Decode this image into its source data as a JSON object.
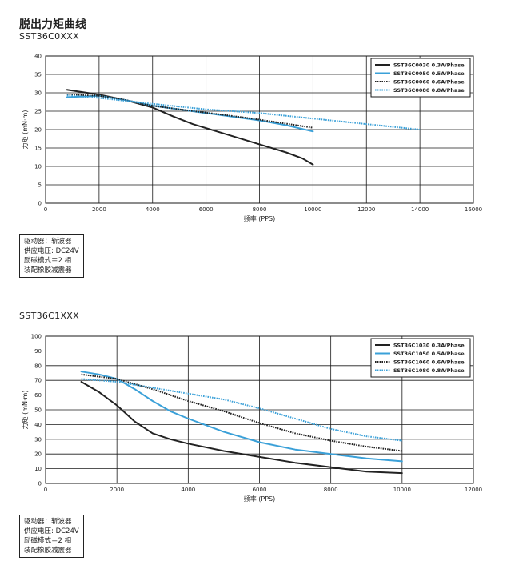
{
  "page": {
    "title": "脱出力矩曲线"
  },
  "colors": {
    "black": "#222222",
    "blue": "#3aa0d8",
    "grid": "#1a1a1a"
  },
  "sections": [
    {
      "model": "SST36C0XXX",
      "notes": [
        "驱动器：斩波器",
        "供应电压: DC24V",
        "励磁模式＝2 相",
        "装配橡胶减震器"
      ]
    },
    {
      "model": "SST36C1XXX",
      "notes": [
        "驱动器：斩波器",
        "供应电压: DC24V",
        "励磁模式＝2 相",
        "装配橡胶减震器"
      ]
    }
  ],
  "chart_data": [
    {
      "type": "line",
      "xlabel": "频率 (PPS)",
      "ylabel": "力矩 (mN·m)",
      "xlim": [
        0,
        16000
      ],
      "ylim": [
        0,
        40
      ],
      "xticks": [
        0,
        2000,
        4000,
        6000,
        8000,
        10000,
        12000,
        14000,
        16000
      ],
      "yticks": [
        0,
        5,
        10,
        15,
        20,
        25,
        30,
        35,
        40
      ],
      "grid": true,
      "legend_position": "top-right",
      "series": [
        {
          "name": "SST36C0030  0.3A/Phase",
          "color": "#222222",
          "style": "solid",
          "x": [
            800,
            2000,
            3000,
            4000,
            4800,
            5500,
            6500,
            8000,
            9000,
            9600,
            10000
          ],
          "y": [
            30.8,
            29.5,
            28,
            26,
            23.5,
            21.5,
            19.3,
            16,
            13.8,
            12.2,
            10.5
          ]
        },
        {
          "name": "SST36C0050  0.5A/Phase",
          "color": "#3aa0d8",
          "style": "solid",
          "x": [
            800,
            2000,
            3000,
            4000,
            5000,
            6000,
            7000,
            8000,
            9000,
            10000
          ],
          "y": [
            28.8,
            29.2,
            28,
            26.5,
            25.5,
            24.5,
            23.5,
            22.5,
            21.2,
            19.5
          ]
        },
        {
          "name": "SST36C0060  0.6A/Phase",
          "color": "#222222",
          "style": "dotted",
          "x": [
            800,
            2000,
            3000,
            4000,
            5000,
            6000,
            7000,
            8000,
            9000,
            10000
          ],
          "y": [
            29.5,
            29.2,
            28,
            26.5,
            25.5,
            24.6,
            23.7,
            22.7,
            21.6,
            20.5
          ]
        },
        {
          "name": "SST36C0080  0.8A/Phase",
          "color": "#3aa0d8",
          "style": "dotted",
          "x": [
            800,
            2000,
            4000,
            6000,
            8000,
            10000,
            12000,
            14000
          ],
          "y": [
            29.3,
            28.6,
            27,
            25.5,
            24.5,
            23,
            21.5,
            20
          ]
        }
      ]
    },
    {
      "type": "line",
      "xlabel": "频率 (PPS)",
      "ylabel": "力矩 (mN·m)",
      "xlim": [
        0,
        12000
      ],
      "ylim": [
        0,
        100
      ],
      "xticks": [
        0,
        2000,
        4000,
        6000,
        8000,
        10000,
        12000
      ],
      "yticks": [
        0,
        10,
        20,
        30,
        40,
        50,
        60,
        70,
        80,
        90,
        100
      ],
      "grid": true,
      "legend_position": "top-right",
      "series": [
        {
          "name": "SST36C1030  0.3A/Phase",
          "color": "#222222",
          "style": "solid",
          "x": [
            1000,
            1500,
            2000,
            2500,
            3000,
            3500,
            4000,
            5000,
            6000,
            7000,
            8000,
            9000,
            10000
          ],
          "y": [
            69,
            62,
            53,
            42,
            34,
            30,
            27,
            22,
            18,
            14,
            11,
            8,
            7
          ]
        },
        {
          "name": "SST36C1050  0.5A/Phase",
          "color": "#3aa0d8",
          "style": "solid",
          "x": [
            1000,
            1500,
            2000,
            2500,
            3000,
            3500,
            4000,
            5000,
            6000,
            7000,
            8000,
            9000,
            10000
          ],
          "y": [
            76,
            74,
            71,
            64,
            56,
            49,
            44,
            35,
            28,
            23,
            20,
            17,
            15
          ]
        },
        {
          "name": "SST36C1060  0.6A/Phase",
          "color": "#222222",
          "style": "dotted",
          "x": [
            1000,
            2000,
            3000,
            4000,
            5000,
            6000,
            7000,
            8000,
            9000,
            10000
          ],
          "y": [
            74,
            71,
            64,
            56,
            49,
            41,
            34,
            29,
            25,
            22
          ]
        },
        {
          "name": "SST36C1080  0.8A/Phase",
          "color": "#3aa0d8",
          "style": "dotted",
          "x": [
            1000,
            2000,
            3000,
            4000,
            5000,
            6000,
            7000,
            8000,
            9000,
            10000
          ],
          "y": [
            71,
            69,
            65,
            61,
            57,
            51,
            44,
            37,
            32,
            29
          ]
        }
      ]
    }
  ]
}
